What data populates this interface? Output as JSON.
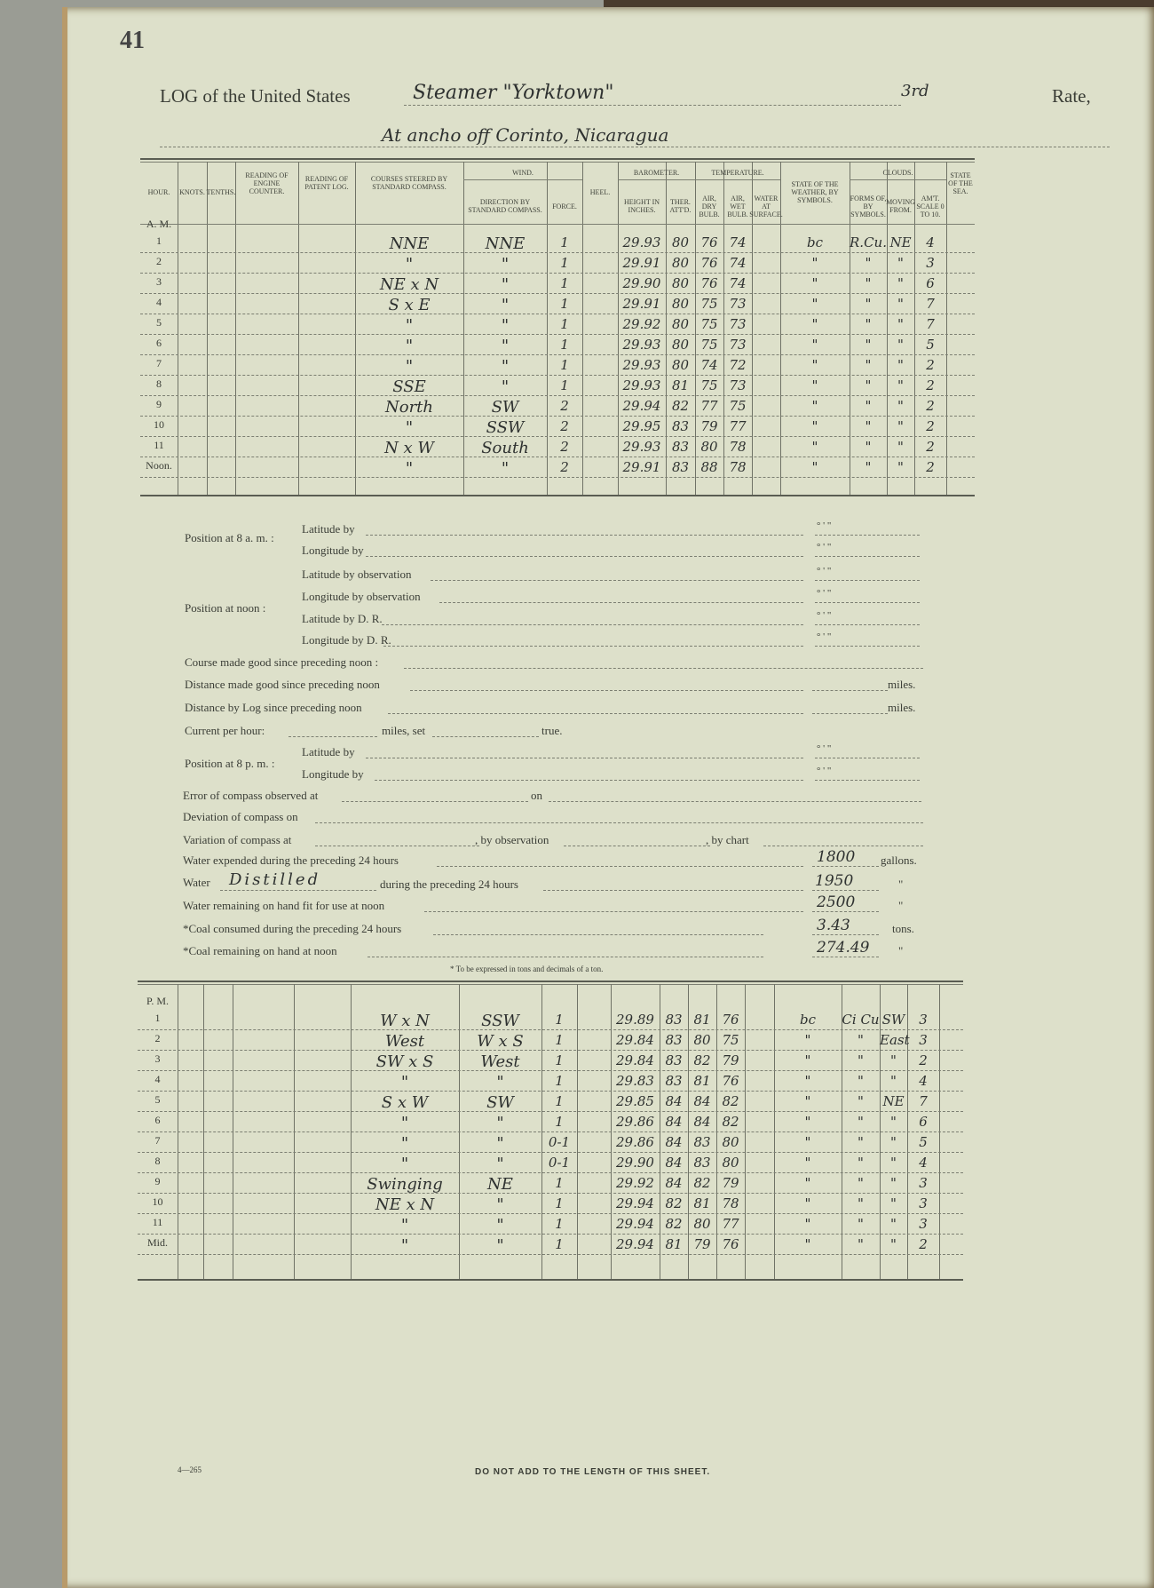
{
  "page_number": "41",
  "title": {
    "prefix": "LOG of the United States",
    "vessel": "Steamer \"Yorktown\"",
    "rate": "3rd",
    "rate_suffix": "Rate,",
    "location": "At ancho off Corinto, Nicaragua"
  },
  "headers": {
    "hour": "Hour.",
    "knots": "Knots.",
    "tenths": "Tenths.",
    "engine": "Reading of Engine Counter.",
    "patent": "Reading of Patent Log.",
    "courses": "Courses steered by Standard Compass.",
    "wind": "Wind.",
    "wind_dir": "Direction by Standard Compass.",
    "force": "Force.",
    "heel": "Heel.",
    "barometer": "Barometer.",
    "height": "Height in Inches.",
    "ther": "Ther. Att'd.",
    "temperature": "Temperature.",
    "dry": "Air, Dry Bulb.",
    "wet": "Air, Wet Bulb.",
    "water": "Water at Surface.",
    "weather": "State of the Weather, by Symbols.",
    "clouds": "Clouds.",
    "forms": "Forms of, by Symbols.",
    "moving": "Moving from.",
    "amount": "Am't. Scale 0 to 10.",
    "sea": "State of the Sea."
  },
  "am_label": "A. M.",
  "am_rows": [
    {
      "hour": "1",
      "course": "NNE",
      "dir": "NNE",
      "force": "1",
      "baro": "29.93",
      "ther": "80",
      "dry": "76",
      "wet": "74",
      "weather": "bc",
      "forms": "R.Cu.",
      "moving": "NE",
      "amount": "4"
    },
    {
      "hour": "2",
      "course": "\"",
      "dir": "\"",
      "force": "1",
      "baro": "29.91",
      "ther": "80",
      "dry": "76",
      "wet": "74",
      "weather": "\"",
      "forms": "\"",
      "moving": "\"",
      "amount": "3"
    },
    {
      "hour": "3",
      "course": "NE x N",
      "dir": "\"",
      "force": "1",
      "baro": "29.90",
      "ther": "80",
      "dry": "76",
      "wet": "74",
      "weather": "\"",
      "forms": "\"",
      "moving": "\"",
      "amount": "6"
    },
    {
      "hour": "4",
      "course": "S x E",
      "dir": "\"",
      "force": "1",
      "baro": "29.91",
      "ther": "80",
      "dry": "75",
      "wet": "73",
      "weather": "\"",
      "forms": "\"",
      "moving": "\"",
      "amount": "7"
    },
    {
      "hour": "5",
      "course": "\"",
      "dir": "\"",
      "force": "1",
      "baro": "29.92",
      "ther": "80",
      "dry": "75",
      "wet": "73",
      "weather": "\"",
      "forms": "\"",
      "moving": "\"",
      "amount": "7"
    },
    {
      "hour": "6",
      "course": "\"",
      "dir": "\"",
      "force": "1",
      "baro": "29.93",
      "ther": "80",
      "dry": "75",
      "wet": "73",
      "weather": "\"",
      "forms": "\"",
      "moving": "\"",
      "amount": "5"
    },
    {
      "hour": "7",
      "course": "\"",
      "dir": "\"",
      "force": "1",
      "baro": "29.93",
      "ther": "80",
      "dry": "74",
      "wet": "72",
      "weather": "\"",
      "forms": "\"",
      "moving": "\"",
      "amount": "2"
    },
    {
      "hour": "8",
      "course": "SSE",
      "dir": "\"",
      "force": "1",
      "baro": "29.93",
      "ther": "81",
      "dry": "75",
      "wet": "73",
      "weather": "\"",
      "forms": "\"",
      "moving": "\"",
      "amount": "2"
    },
    {
      "hour": "9",
      "course": "North",
      "dir": "SW",
      "force": "2",
      "baro": "29.94",
      "ther": "82",
      "dry": "77",
      "wet": "75",
      "weather": "\"",
      "forms": "\"",
      "moving": "\"",
      "amount": "2"
    },
    {
      "hour": "10",
      "course": "\"",
      "dir": "SSW",
      "force": "2",
      "baro": "29.95",
      "ther": "83",
      "dry": "79",
      "wet": "77",
      "weather": "\"",
      "forms": "\"",
      "moving": "\"",
      "amount": "2"
    },
    {
      "hour": "11",
      "course": "N x W",
      "dir": "South",
      "force": "2",
      "baro": "29.93",
      "ther": "83",
      "dry": "80",
      "wet": "78",
      "weather": "\"",
      "forms": "\"",
      "moving": "\"",
      "amount": "2"
    },
    {
      "hour": "Noon.",
      "course": "\"",
      "dir": "\"",
      "force": "2",
      "baro": "29.91",
      "ther": "83",
      "dry": "88",
      "wet": "78",
      "weather": "\"",
      "forms": "\"",
      "moving": "\"",
      "amount": "2"
    }
  ],
  "pm_label": "P. M.",
  "pm_rows": [
    {
      "hour": "1",
      "course": "W x N",
      "dir": "SSW",
      "force": "1",
      "baro": "29.89",
      "ther": "83",
      "dry": "81",
      "wet": "76",
      "weather": "bc",
      "forms": "Ci Cu",
      "moving": "SW",
      "amount": "3"
    },
    {
      "hour": "2",
      "course": "West",
      "dir": "W x S",
      "force": "1",
      "baro": "29.84",
      "ther": "83",
      "dry": "80",
      "wet": "75",
      "weather": "\"",
      "forms": "\"",
      "moving": "East",
      "amount": "3"
    },
    {
      "hour": "3",
      "course": "SW x S",
      "dir": "West",
      "force": "1",
      "baro": "29.84",
      "ther": "83",
      "dry": "82",
      "wet": "79",
      "weather": "\"",
      "forms": "\"",
      "moving": "\"",
      "amount": "2"
    },
    {
      "hour": "4",
      "course": "\"",
      "dir": "\"",
      "force": "1",
      "baro": "29.83",
      "ther": "83",
      "dry": "81",
      "wet": "76",
      "weather": "\"",
      "forms": "\"",
      "moving": "\"",
      "amount": "4"
    },
    {
      "hour": "5",
      "course": "S x W",
      "dir": "SW",
      "force": "1",
      "baro": "29.85",
      "ther": "84",
      "dry": "84",
      "wet": "82",
      "weather": "\"",
      "forms": "\"",
      "moving": "NE",
      "amount": "7"
    },
    {
      "hour": "6",
      "course": "\"",
      "dir": "\"",
      "force": "1",
      "baro": "29.86",
      "ther": "84",
      "dry": "84",
      "wet": "82",
      "weather": "\"",
      "forms": "\"",
      "moving": "\"",
      "amount": "6"
    },
    {
      "hour": "7",
      "course": "\"",
      "dir": "\"",
      "force": "0-1",
      "baro": "29.86",
      "ther": "84",
      "dry": "83",
      "wet": "80",
      "weather": "\"",
      "forms": "\"",
      "moving": "\"",
      "amount": "5"
    },
    {
      "hour": "8",
      "course": "\"",
      "dir": "\"",
      "force": "0-1",
      "baro": "29.90",
      "ther": "84",
      "dry": "83",
      "wet": "80",
      "weather": "\"",
      "forms": "\"",
      "moving": "\"",
      "amount": "4"
    },
    {
      "hour": "9",
      "course": "Swinging",
      "dir": "NE",
      "force": "1",
      "baro": "29.92",
      "ther": "84",
      "dry": "82",
      "wet": "79",
      "weather": "\"",
      "forms": "\"",
      "moving": "\"",
      "amount": "3"
    },
    {
      "hour": "10",
      "course": "NE x N",
      "dir": "\"",
      "force": "1",
      "baro": "29.94",
      "ther": "82",
      "dry": "81",
      "wet": "78",
      "weather": "\"",
      "forms": "\"",
      "moving": "\"",
      "amount": "3"
    },
    {
      "hour": "11",
      "course": "\"",
      "dir": "\"",
      "force": "1",
      "baro": "29.94",
      "ther": "82",
      "dry": "80",
      "wet": "77",
      "weather": "\"",
      "forms": "\"",
      "moving": "\"",
      "amount": "3"
    },
    {
      "hour": "Mid.",
      "course": "\"",
      "dir": "\"",
      "force": "1",
      "baro": "29.94",
      "ther": "81",
      "dry": "79",
      "wet": "76",
      "weather": "\"",
      "forms": "\"",
      "moving": "\"",
      "amount": "2"
    }
  ],
  "position": {
    "at_8am": "Position at 8 a. m. :",
    "lat_by": "Latitude by",
    "lon_by": "Longitude by",
    "at_noon": "Position at noon :",
    "lat_obs": "Latitude by observation",
    "lon_obs": "Longitude by observation",
    "lat_dr": "Latitude by D. R.",
    "lon_dr": "Longitude by D. R.",
    "at_8pm": "Position at 8 p. m. :",
    "deg_marks": "°        '        \""
  },
  "form": {
    "course_made": "Course made good since preceding noon :",
    "distance_made": "Distance made good since preceding noon",
    "distance_log": "Distance by Log since preceding noon",
    "miles": "miles.",
    "current": "Current per hour:",
    "current_miles": "miles, set",
    "current_true": "true.",
    "error_compass": "Error of compass observed at",
    "on": "on",
    "deviation": "Deviation of compass on",
    "variation": "Variation of compass at",
    "by_observation": ", by observation",
    "by_chart": ", by chart",
    "water_expended": "Water expended during the preceding 24 hours",
    "water_expended_value": "1800",
    "gallons": "gallons.",
    "water": "Water",
    "water_type": "Distilled",
    "water_during": "during the preceding 24 hours",
    "water_distilled_value": "1950",
    "ditto": "\"",
    "water_remaining": "Water remaining on hand fit for use at noon",
    "water_remaining_value": "2500",
    "coal_consumed": "*Coal consumed during the preceding 24 hours",
    "coal_consumed_value": "3.43",
    "tons": "tons.",
    "coal_remaining": "*Coal remaining on hand at noon",
    "coal_remaining_value": "274.49",
    "footnote": "* To be expressed in tons and decimals of a ton."
  },
  "footer": {
    "form_number": "4—265",
    "notice": "DO NOT ADD TO THE LENGTH OF THIS SHEET."
  }
}
